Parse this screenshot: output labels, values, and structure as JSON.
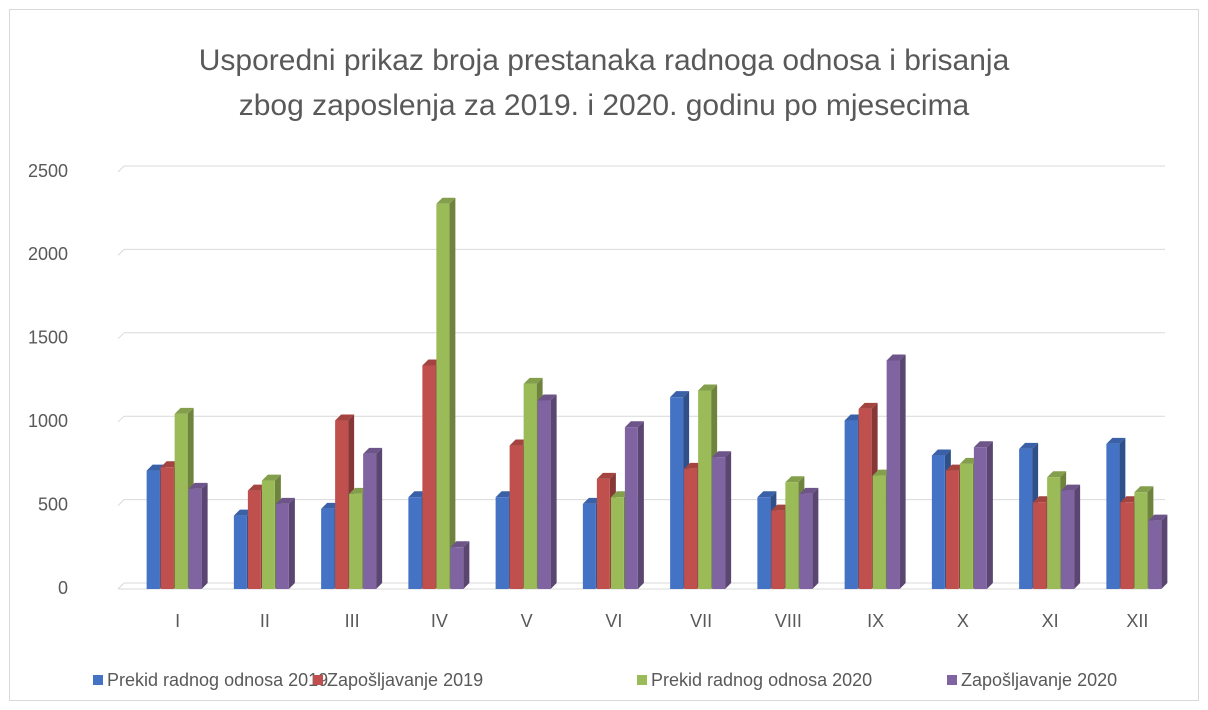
{
  "chart_data": {
    "type": "bar",
    "title": [
      "Usporedni prikaz broja prestanaka radnoga odnosa i brisanja",
      "zbog zaposlenja za 2019. i 2020. godinu po mjesecima"
    ],
    "categories": [
      "I",
      "II",
      "III",
      "IV",
      "V",
      "VI",
      "VII",
      "VIII",
      "IX",
      "X",
      "XI",
      "XII"
    ],
    "series": [
      {
        "name": "Prekid radnog odnosa 2019",
        "color": "#4472c4",
        "values": [
          710,
          440,
          480,
          550,
          550,
          510,
          1150,
          550,
          1010,
          800,
          840,
          870
        ]
      },
      {
        "name": "Zapošljavanje 2019",
        "color": "#c0504d",
        "values": [
          730,
          590,
          1010,
          1340,
          860,
          660,
          720,
          470,
          1080,
          710,
          520,
          520
        ]
      },
      {
        "name": "Prekid radnog odnosa 2020",
        "color": "#9bbb59",
        "values": [
          1050,
          650,
          570,
          2310,
          1230,
          550,
          1190,
          640,
          680,
          750,
          670,
          580
        ]
      },
      {
        "name": "Zapošljavanje 2020",
        "color": "#8064a2",
        "values": [
          600,
          510,
          810,
          250,
          1130,
          970,
          790,
          570,
          1370,
          850,
          590,
          410
        ]
      }
    ],
    "ylim": [
      0,
      2500
    ],
    "yticks": [
      0,
      500,
      1000,
      1500,
      2000,
      2500
    ],
    "grid": true,
    "legend": "bottom"
  }
}
